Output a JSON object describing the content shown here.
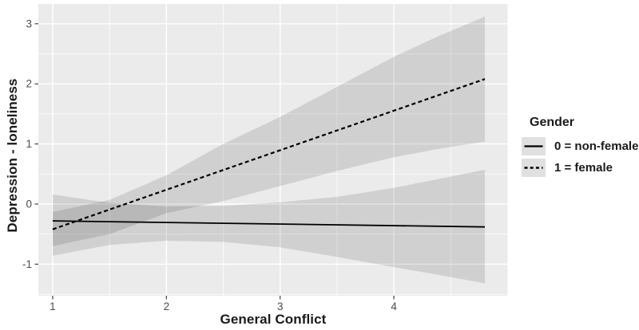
{
  "chart_data": {
    "type": "line",
    "title": "",
    "xlabel": "General Conflict",
    "ylabel": "Depression - loneliness",
    "xlim": [
      0.874,
      5.0
    ],
    "ylim": [
      -1.525,
      3.329
    ],
    "x_ticks": [
      1,
      2,
      3,
      4
    ],
    "y_ticks": [
      -1,
      0,
      1,
      2,
      3
    ],
    "x_minor_gridlines": [
      1.5,
      2.5,
      3.5,
      4.5
    ],
    "y_minor_gridlines": [
      -1.5,
      -0.5,
      0.5,
      1.5,
      2.5
    ],
    "grid": "on",
    "legend": {
      "title": "Gender",
      "position": "right"
    },
    "series": [
      {
        "name": "0 = non-female",
        "line_style": "solid",
        "x": [
          1.0,
          4.8
        ],
        "y": [
          -0.28,
          -0.38
        ],
        "ci": {
          "x": [
            1.0,
            1.5,
            2.0,
            2.5,
            3.0,
            3.5,
            4.0,
            4.4,
            4.8
          ],
          "upper": [
            0.16,
            0.02,
            -0.04,
            -0.03,
            0.03,
            0.12,
            0.27,
            0.42,
            0.57
          ],
          "lower": [
            -0.86,
            -0.68,
            -0.61,
            -0.63,
            -0.72,
            -0.88,
            -1.05,
            -1.18,
            -1.32
          ]
        }
      },
      {
        "name": "1 = female",
        "line_style": "dashed",
        "x": [
          1.0,
          4.8
        ],
        "y": [
          -0.42,
          2.08
        ],
        "ci": {
          "x": [
            1.0,
            1.5,
            2.0,
            2.5,
            3.0,
            3.5,
            4.0,
            4.4,
            4.8
          ],
          "upper": [
            -0.13,
            0.07,
            0.48,
            1.0,
            1.45,
            1.95,
            2.45,
            2.8,
            3.12
          ],
          "lower": [
            -0.7,
            -0.5,
            -0.15,
            0.05,
            0.3,
            0.55,
            0.78,
            0.92,
            1.04
          ]
        }
      }
    ],
    "colors": {
      "panel_bg": "#ebebeb",
      "grid": "#ffffff",
      "ribbon": "rgba(0,0,0,0.115)",
      "line": "#000000",
      "tick_mark": "#333333",
      "tick_label": "#4d4d4d",
      "axis_title": "#1a1a1a",
      "legend_key_bg": "#e0e0e0"
    }
  }
}
